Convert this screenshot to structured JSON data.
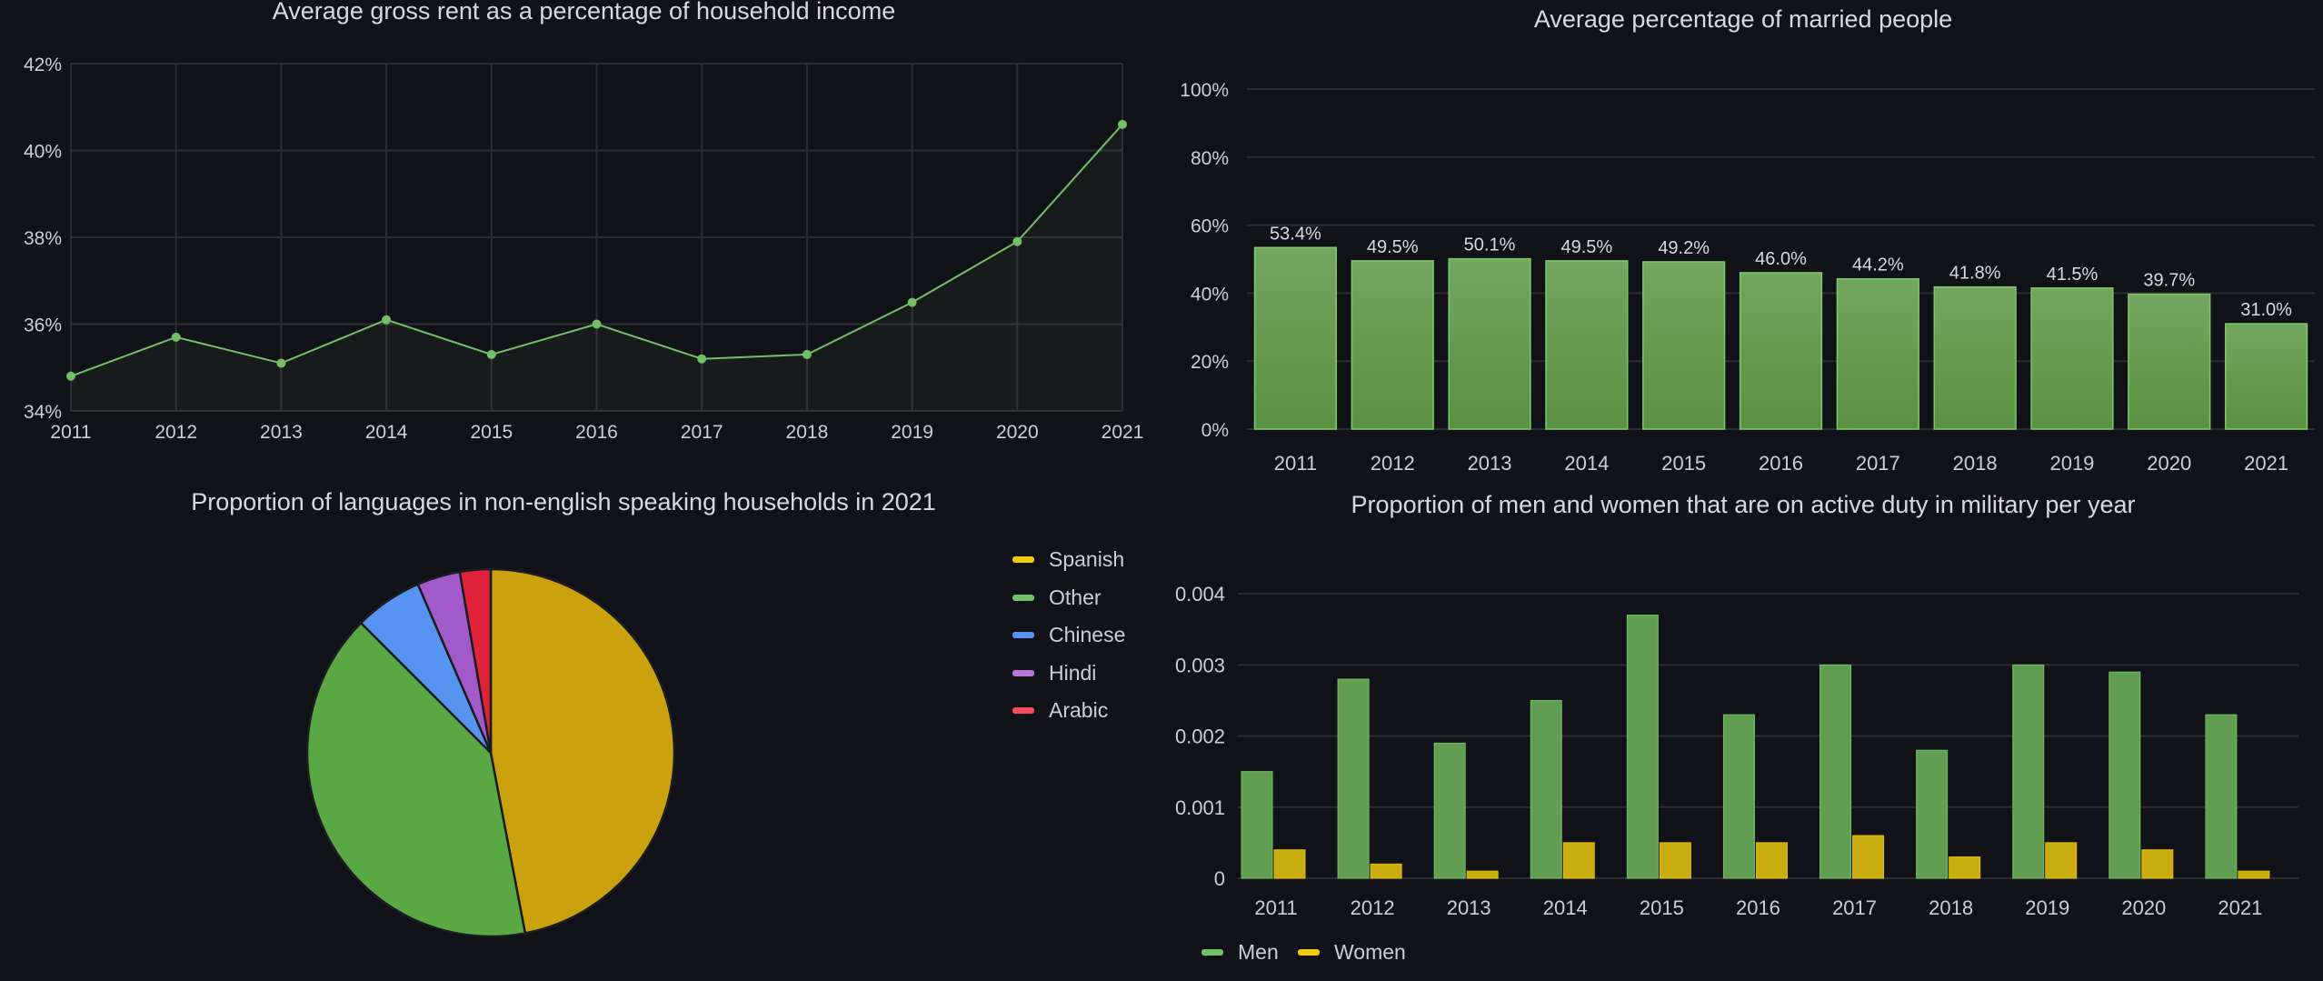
{
  "colors": {
    "green": "#73bf69",
    "yellow": "#f2cc0c",
    "blue": "#5794f2",
    "purple": "#b877d9",
    "red": "#f2495c",
    "grid": "#2c2d33",
    "axis_text": "#ccccdc",
    "background": "#111217"
  },
  "panels": {
    "rent": {
      "title": "Average gross rent as a percentage of household income"
    },
    "married": {
      "title": "Average percentage of married people"
    },
    "languages": {
      "title": "Proportion of languages in non-english speaking households in 2021"
    },
    "military": {
      "title": "Proportion of men and women that are on active duty in military per year"
    }
  },
  "chart_data": [
    {
      "id": "rent",
      "type": "line",
      "title": "Average gross rent as a percentage of household income",
      "x": [
        "2011",
        "2012",
        "2013",
        "2014",
        "2015",
        "2016",
        "2017",
        "2018",
        "2019",
        "2020",
        "2021"
      ],
      "series": [
        {
          "values": [
            34.8,
            35.7,
            35.1,
            36.1,
            35.3,
            36.0,
            35.2,
            35.3,
            36.5,
            37.9,
            40.6
          ]
        }
      ],
      "ylim": [
        34,
        42
      ],
      "yticks": [
        34,
        36,
        38,
        40,
        42
      ],
      "ytick_labels": [
        "34%",
        "36%",
        "38%",
        "40%",
        "42%"
      ],
      "grid": true
    },
    {
      "id": "married",
      "type": "bar",
      "title": "Average percentage of married people",
      "categories": [
        "2011",
        "2012",
        "2013",
        "2014",
        "2015",
        "2016",
        "2017",
        "2018",
        "2019",
        "2020",
        "2021"
      ],
      "values": [
        53.4,
        49.5,
        50.1,
        49.5,
        49.2,
        46.0,
        44.2,
        41.8,
        41.5,
        39.7,
        31.0
      ],
      "value_labels": [
        "53.4%",
        "49.5%",
        "50.1%",
        "49.5%",
        "49.2%",
        "46.0%",
        "44.2%",
        "41.8%",
        "41.5%",
        "39.7%",
        "31.0%"
      ],
      "ylim": [
        0,
        100
      ],
      "yticks": [
        0,
        20,
        40,
        60,
        80,
        100
      ],
      "ytick_labels": [
        "0%",
        "20%",
        "40%",
        "60%",
        "80%",
        "100%"
      ],
      "grid": true
    },
    {
      "id": "languages",
      "type": "pie",
      "title": "Proportion of languages in non-english speaking households in 2021",
      "slices": [
        {
          "label": "Spanish",
          "value": 47.0
        },
        {
          "label": "Other",
          "value": 40.5
        },
        {
          "label": "Chinese",
          "value": 6.0
        },
        {
          "label": "Hindi",
          "value": 3.8
        },
        {
          "label": "Arabic",
          "value": 2.7
        }
      ],
      "legend": "right"
    },
    {
      "id": "military",
      "type": "bar",
      "title": "Proportion of men and women that are on active duty in military per year",
      "categories": [
        "2011",
        "2012",
        "2013",
        "2014",
        "2015",
        "2016",
        "2017",
        "2018",
        "2019",
        "2020",
        "2021"
      ],
      "series": [
        {
          "name": "Men",
          "values": [
            0.0015,
            0.0028,
            0.0019,
            0.0025,
            0.0037,
            0.0023,
            0.003,
            0.0018,
            0.003,
            0.0029,
            0.0023
          ]
        },
        {
          "name": "Women",
          "values": [
            0.0004,
            0.0002,
            0.0001,
            0.0005,
            0.0005,
            0.0005,
            0.0006,
            0.0003,
            0.0005,
            0.0004,
            0.0001
          ]
        }
      ],
      "ylim": [
        0,
        0.0045
      ],
      "yticks": [
        0,
        0.001,
        0.002,
        0.003,
        0.004
      ],
      "ytick_labels": [
        "0",
        "0.001",
        "0.002",
        "0.003",
        "0.004"
      ],
      "legend": "bottom-left",
      "grid": true
    }
  ]
}
